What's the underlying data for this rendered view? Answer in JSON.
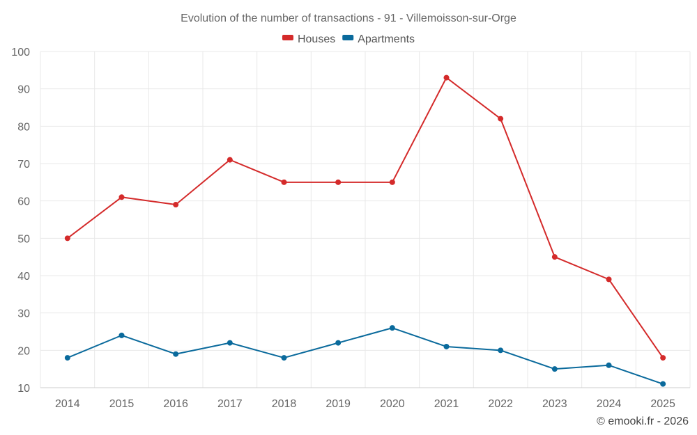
{
  "chart_data": {
    "type": "line",
    "title": "Evolution of the number of transactions - 91 - Villemoisson-sur-Orge",
    "categories": [
      "2014",
      "2015",
      "2016",
      "2017",
      "2018",
      "2019",
      "2020",
      "2021",
      "2022",
      "2023",
      "2024",
      "2025"
    ],
    "series": [
      {
        "name": "Houses",
        "color": "#d42a2a",
        "values": [
          50,
          61,
          59,
          71,
          65,
          65,
          65,
          93,
          82,
          45,
          39,
          18
        ]
      },
      {
        "name": "Apartments",
        "color": "#0a6a9c",
        "values": [
          18,
          24,
          19,
          22,
          18,
          22,
          26,
          21,
          20,
          15,
          16,
          11
        ]
      }
    ],
    "ylim": [
      10,
      100
    ],
    "yticks": [
      10,
      20,
      30,
      40,
      50,
      60,
      70,
      80,
      90,
      100
    ],
    "grid": true,
    "legend_position": "top-center",
    "xlabel": "",
    "ylabel": ""
  },
  "credit": "© emooki.fr - 2026"
}
